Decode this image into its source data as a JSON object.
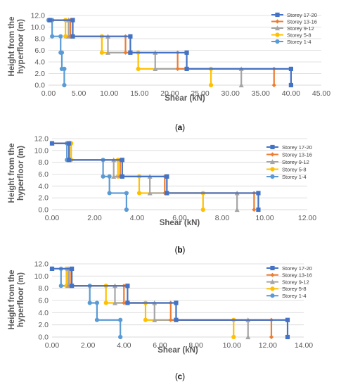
{
  "chart_data": [
    {
      "type": "line",
      "caption_letter": "a",
      "xlabel": "Shear (kN)",
      "ylabel": "Height from the hyperfloor (m)",
      "xlim": [
        0,
        45
      ],
      "ylim": [
        0,
        12
      ],
      "x_ticks": [
        "0.00",
        "5.00",
        "10.00",
        "15.00",
        "20.00",
        "25.00",
        "30.00",
        "35.00",
        "40.00",
        "45.00"
      ],
      "y_ticks": [
        "0.0",
        "2.0",
        "4.0",
        "6.0",
        "8.0",
        "10.0",
        "12.0"
      ],
      "legend": "right",
      "series": [
        {
          "name": "Storey 17-20",
          "color": "#4472c4",
          "marker": "square",
          "points": [
            [
              40.0,
              0
            ],
            [
              40.0,
              2.8
            ],
            [
              22.8,
              2.8
            ],
            [
              22.8,
              5.6
            ],
            [
              13.5,
              5.6
            ],
            [
              13.5,
              8.4
            ],
            [
              4.0,
              8.4
            ],
            [
              4.0,
              11.2
            ],
            [
              0.2,
              11.2
            ]
          ]
        },
        {
          "name": "Storey 13-16",
          "color": "#ed7d31",
          "marker": "diamond",
          "points": [
            [
              37.2,
              0
            ],
            [
              37.2,
              2.8
            ],
            [
              21.3,
              2.8
            ],
            [
              21.3,
              5.6
            ],
            [
              12.7,
              5.6
            ],
            [
              12.7,
              8.4
            ],
            [
              3.6,
              8.4
            ],
            [
              3.6,
              11.2
            ],
            [
              0.2,
              11.2
            ]
          ]
        },
        {
          "name": "Storey 9-12",
          "color": "#a5a5a5",
          "marker": "triangle",
          "points": [
            [
              31.8,
              0
            ],
            [
              31.8,
              2.8
            ],
            [
              17.6,
              2.8
            ],
            [
              17.6,
              5.6
            ],
            [
              9.8,
              5.6
            ],
            [
              9.8,
              8.4
            ],
            [
              3.3,
              8.4
            ],
            [
              3.3,
              11.2
            ],
            [
              0.2,
              11.2
            ]
          ]
        },
        {
          "name": "Storey 5-8",
          "color": "#ffc000",
          "marker": "circle",
          "points": [
            [
              26.8,
              0
            ],
            [
              26.8,
              2.8
            ],
            [
              14.8,
              2.8
            ],
            [
              14.8,
              5.6
            ],
            [
              8.8,
              5.6
            ],
            [
              8.8,
              8.4
            ],
            [
              2.8,
              8.4
            ],
            [
              2.8,
              11.2
            ],
            [
              0.2,
              11.2
            ]
          ]
        },
        {
          "name": "Storey 1-4",
          "color": "#5b9bd5",
          "marker": "circle",
          "points": [
            [
              2.6,
              0
            ],
            [
              2.6,
              2.8
            ],
            [
              2.2,
              2.8
            ],
            [
              2.2,
              5.6
            ],
            [
              2.0,
              5.6
            ],
            [
              2.0,
              8.4
            ],
            [
              0.6,
              8.4
            ],
            [
              0.6,
              11.2
            ],
            [
              0.0,
              11.2
            ]
          ]
        }
      ]
    },
    {
      "type": "line",
      "caption_letter": "b",
      "xlabel": "Shear (kN)",
      "ylabel": "Height from the hyperfloor (m)",
      "xlim": [
        0,
        12
      ],
      "ylim": [
        0,
        12
      ],
      "x_ticks": [
        "0.00",
        "2.00",
        "4.00",
        "6.00",
        "8.00",
        "10.00",
        "12.00"
      ],
      "y_ticks": [
        "0.0",
        "2.0",
        "4.0",
        "6.0",
        "8.0",
        "10.0",
        "12.0"
      ],
      "legend": "right",
      "series": [
        {
          "name": "Storey 17-20",
          "color": "#4472c4",
          "marker": "square",
          "points": [
            [
              9.7,
              0
            ],
            [
              9.7,
              2.8
            ],
            [
              5.4,
              2.8
            ],
            [
              5.4,
              5.6
            ],
            [
              3.3,
              5.6
            ],
            [
              3.3,
              8.4
            ],
            [
              0.8,
              8.4
            ],
            [
              0.8,
              11.2
            ],
            [
              0.0,
              11.2
            ]
          ]
        },
        {
          "name": "Storey 13-16",
          "color": "#ed7d31",
          "marker": "diamond",
          "points": [
            [
              9.5,
              0
            ],
            [
              9.5,
              2.8
            ],
            [
              5.3,
              2.8
            ],
            [
              5.3,
              5.6
            ],
            [
              3.2,
              5.6
            ],
            [
              3.2,
              8.4
            ],
            [
              0.8,
              8.4
            ],
            [
              0.8,
              11.2
            ],
            [
              0.0,
              11.2
            ]
          ]
        },
        {
          "name": "Storey 9-12",
          "color": "#a5a5a5",
          "marker": "triangle",
          "points": [
            [
              8.7,
              0
            ],
            [
              8.7,
              2.8
            ],
            [
              4.6,
              2.8
            ],
            [
              4.6,
              5.6
            ],
            [
              2.9,
              5.6
            ],
            [
              2.9,
              8.4
            ],
            [
              0.8,
              8.4
            ],
            [
              0.8,
              11.2
            ],
            [
              0.0,
              11.2
            ]
          ]
        },
        {
          "name": "Storey 5-8",
          "color": "#ffc000",
          "marker": "circle",
          "points": [
            [
              7.1,
              0
            ],
            [
              7.1,
              2.8
            ],
            [
              4.1,
              2.8
            ],
            [
              4.1,
              5.6
            ],
            [
              3.1,
              5.6
            ],
            [
              3.1,
              8.4
            ],
            [
              0.9,
              8.4
            ],
            [
              0.9,
              11.2
            ],
            [
              0.0,
              11.2
            ]
          ]
        },
        {
          "name": "Storey 1-4",
          "color": "#5b9bd5",
          "marker": "circle",
          "points": [
            [
              3.5,
              0
            ],
            [
              3.5,
              2.8
            ],
            [
              2.7,
              2.8
            ],
            [
              2.7,
              5.6
            ],
            [
              2.4,
              5.6
            ],
            [
              2.4,
              8.4
            ],
            [
              0.7,
              8.4
            ],
            [
              0.7,
              11.2
            ],
            [
              0.0,
              11.2
            ]
          ]
        }
      ]
    },
    {
      "type": "line",
      "caption_letter": "c",
      "xlabel": "Shear (kN)",
      "ylabel": "Height from the hyperfloor (m)",
      "xlim": [
        0,
        14
      ],
      "ylim": [
        0,
        12
      ],
      "x_ticks": [
        "0.00",
        "2.00",
        "4.00",
        "6.00",
        "8.00",
        "10.00",
        "12.00",
        "14.00"
      ],
      "y_ticks": [
        "0.0",
        "2.0",
        "4.0",
        "6.0",
        "8.0",
        "10.0",
        "12.0"
      ],
      "legend": "right",
      "series": [
        {
          "name": "Storey 17-20",
          "color": "#4472c4",
          "marker": "square",
          "points": [
            [
              13.1,
              0
            ],
            [
              13.1,
              2.8
            ],
            [
              6.9,
              2.8
            ],
            [
              6.9,
              5.6
            ],
            [
              4.2,
              5.6
            ],
            [
              4.2,
              8.4
            ],
            [
              1.1,
              8.4
            ],
            [
              1.1,
              11.2
            ],
            [
              0.0,
              11.2
            ]
          ]
        },
        {
          "name": "Storey 13-16",
          "color": "#ed7d31",
          "marker": "diamond",
          "points": [
            [
              12.2,
              0
            ],
            [
              12.2,
              2.8
            ],
            [
              6.6,
              2.8
            ],
            [
              6.6,
              5.6
            ],
            [
              4.0,
              5.6
            ],
            [
              4.0,
              8.4
            ],
            [
              1.0,
              8.4
            ],
            [
              1.0,
              11.2
            ],
            [
              0.0,
              11.2
            ]
          ]
        },
        {
          "name": "Storey 9-12",
          "color": "#a5a5a5",
          "marker": "triangle",
          "points": [
            [
              10.9,
              0
            ],
            [
              10.9,
              2.8
            ],
            [
              5.7,
              2.8
            ],
            [
              5.7,
              5.6
            ],
            [
              3.5,
              5.6
            ],
            [
              3.5,
              8.4
            ],
            [
              0.9,
              8.4
            ],
            [
              0.9,
              11.2
            ],
            [
              0.0,
              11.2
            ]
          ]
        },
        {
          "name": "Storey 5-8",
          "color": "#ffc000",
          "marker": "circle",
          "points": [
            [
              10.1,
              0
            ],
            [
              10.1,
              2.8
            ],
            [
              5.2,
              2.8
            ],
            [
              5.2,
              5.6
            ],
            [
              3.0,
              5.6
            ],
            [
              3.0,
              8.4
            ],
            [
              0.8,
              8.4
            ],
            [
              0.8,
              11.2
            ],
            [
              0.0,
              11.2
            ]
          ]
        },
        {
          "name": "Storey 1-4",
          "color": "#5b9bd5",
          "marker": "circle",
          "points": [
            [
              3.8,
              0
            ],
            [
              3.8,
              2.8
            ],
            [
              2.5,
              2.8
            ],
            [
              2.5,
              5.6
            ],
            [
              2.1,
              5.6
            ],
            [
              2.1,
              8.4
            ],
            [
              0.5,
              8.4
            ],
            [
              0.5,
              11.2
            ],
            [
              0.0,
              11.2
            ]
          ]
        }
      ]
    }
  ]
}
